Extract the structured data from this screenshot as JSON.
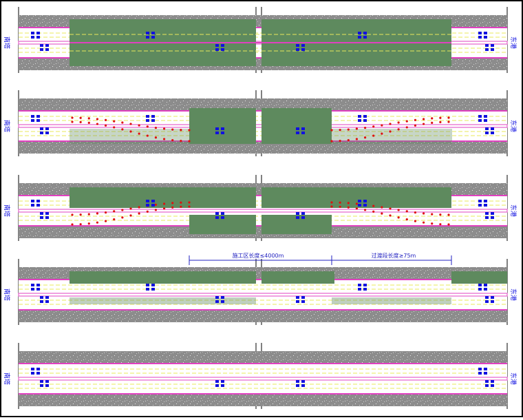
{
  "stages": [
    {
      "left_label": "南塔",
      "right_label": "东港"
    },
    {
      "left_label": "南塔",
      "right_label": "东港"
    },
    {
      "left_label": "南塔",
      "right_label": "东港"
    },
    {
      "left_label": "南塔",
      "right_label": "东港"
    },
    {
      "left_label": "南塔",
      "right_label": "东港"
    }
  ],
  "dimensions": {
    "work_zone": "施工区长度≤4000m",
    "transition": "过渡段长度≥75m"
  },
  "colors": {
    "border": "#000000",
    "pavement_gray": "#8c8c8c",
    "green_zone": "#5e8a5e",
    "magenta_line": "#e040c0",
    "yellow_line": "#e8e85a",
    "cone_red": "#e01010",
    "sign_blue": "#1010e0",
    "dim_blue": "#2020c0"
  },
  "icons": [
    "traffic-cone-icon",
    "road-sign-icon",
    "break-line-icon"
  ]
}
